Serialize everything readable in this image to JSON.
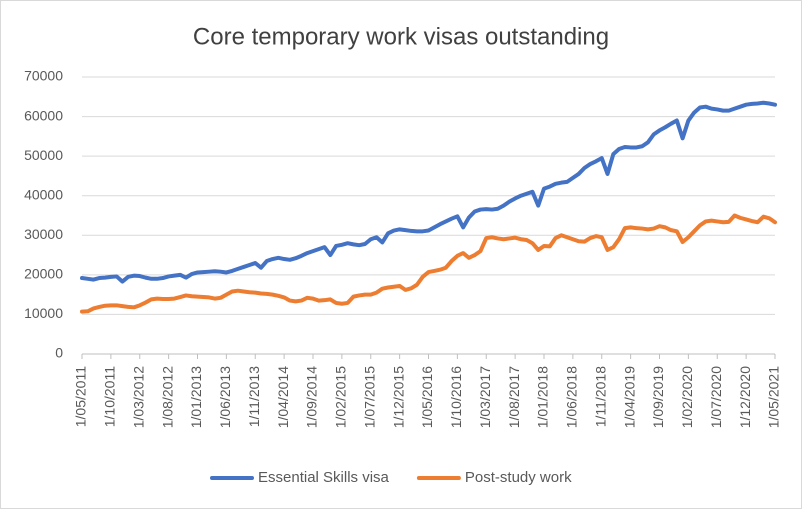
{
  "chart_data": {
    "type": "line",
    "title": "Core temporary work visas outstanding",
    "categories": [
      "1/05/2011",
      null,
      null,
      null,
      null,
      "1/10/2011",
      null,
      null,
      null,
      null,
      "1/03/2012",
      null,
      null,
      null,
      null,
      "1/08/2012",
      null,
      null,
      null,
      null,
      "1/01/2013",
      null,
      null,
      null,
      null,
      "1/06/2013",
      null,
      null,
      null,
      null,
      "1/11/2013",
      null,
      null,
      null,
      null,
      "1/04/2014",
      null,
      null,
      null,
      null,
      "1/09/2014",
      null,
      null,
      null,
      null,
      "1/02/2015",
      null,
      null,
      null,
      null,
      "1/07/2015",
      null,
      null,
      null,
      null,
      "1/12/2015",
      null,
      null,
      null,
      null,
      "1/05/2016",
      null,
      null,
      null,
      null,
      "1/10/2016",
      null,
      null,
      null,
      null,
      "1/03/2017",
      null,
      null,
      null,
      null,
      "1/08/2017",
      null,
      null,
      null,
      null,
      "1/01/2018",
      null,
      null,
      null,
      null,
      "1/06/2018",
      null,
      null,
      null,
      null,
      "1/11/2018",
      null,
      null,
      null,
      null,
      "1/04/2019",
      null,
      null,
      null,
      null,
      "1/09/2019",
      null,
      null,
      null,
      null,
      "1/02/2020",
      null,
      null,
      null,
      null,
      "1/07/2020",
      null,
      null,
      null,
      null,
      "1/12/2020",
      null,
      null,
      null,
      null,
      "1/05/2021"
    ],
    "series": [
      {
        "name": "Essential Skills visa",
        "color": "#4472c4",
        "values": [
          19200,
          19000,
          18800,
          19200,
          19300,
          19500,
          19600,
          18300,
          19500,
          19800,
          19700,
          19300,
          19000,
          19000,
          19200,
          19600,
          19800,
          20000,
          19300,
          20200,
          20600,
          20700,
          20800,
          20900,
          20800,
          20600,
          21000,
          21500,
          22000,
          22500,
          23000,
          21800,
          23500,
          24000,
          24300,
          24000,
          23800,
          24200,
          24800,
          25500,
          26000,
          26500,
          27000,
          25000,
          27300,
          27600,
          28000,
          27700,
          27500,
          27800,
          29000,
          29500,
          28200,
          30500,
          31200,
          31500,
          31300,
          31100,
          31000,
          31000,
          31200,
          32000,
          32800,
          33500,
          34200,
          34800,
          32000,
          34500,
          36000,
          36500,
          36600,
          36500,
          36700,
          37500,
          38500,
          39300,
          40000,
          40500,
          41000,
          37500,
          41800,
          42300,
          43000,
          43300,
          43500,
          44500,
          45500,
          47000,
          48000,
          48700,
          49500,
          45500,
          50500,
          51800,
          52300,
          52200,
          52200,
          52500,
          53500,
          55500,
          56500,
          57300,
          58200,
          59000,
          54500,
          59000,
          61000,
          62300,
          62500,
          62000,
          61800,
          61500,
          61500,
          62000,
          62500,
          63000,
          63200,
          63300,
          63500,
          63300,
          63000
        ]
      },
      {
        "name": "Post-study work",
        "color": "#ed7d31",
        "values": [
          10700,
          10800,
          11500,
          11900,
          12200,
          12300,
          12300,
          12100,
          11900,
          11800,
          12300,
          13000,
          13800,
          14000,
          13900,
          13900,
          14000,
          14400,
          14800,
          14600,
          14500,
          14400,
          14300,
          14000,
          14200,
          15000,
          15800,
          16000,
          15800,
          15600,
          15500,
          15300,
          15200,
          15000,
          14700,
          14300,
          13500,
          13300,
          13500,
          14200,
          14000,
          13500,
          13600,
          13800,
          12900,
          12700,
          12900,
          14500,
          14800,
          15000,
          15000,
          15500,
          16500,
          16800,
          17000,
          17200,
          16200,
          16600,
          17500,
          19500,
          20700,
          21000,
          21300,
          21800,
          23500,
          24800,
          25500,
          24300,
          25000,
          26000,
          29300,
          29500,
          29200,
          29000,
          29200,
          29400,
          29000,
          28800,
          28000,
          26300,
          27300,
          27200,
          29300,
          30000,
          29500,
          29000,
          28500,
          28400,
          29300,
          29800,
          29500,
          26300,
          27000,
          29000,
          31800,
          32000,
          31800,
          31700,
          31500,
          31700,
          32300,
          32000,
          31300,
          31000,
          28300,
          29500,
          31000,
          32500,
          33500,
          33700,
          33500,
          33300,
          33400,
          35000,
          34400,
          34000,
          33600,
          33300,
          34700,
          34300,
          33300
        ]
      }
    ],
    "ylim": [
      0,
      70000
    ],
    "yticks": [
      0,
      10000,
      20000,
      30000,
      40000,
      50000,
      60000,
      70000
    ],
    "grid": true,
    "legend": "bottom"
  }
}
